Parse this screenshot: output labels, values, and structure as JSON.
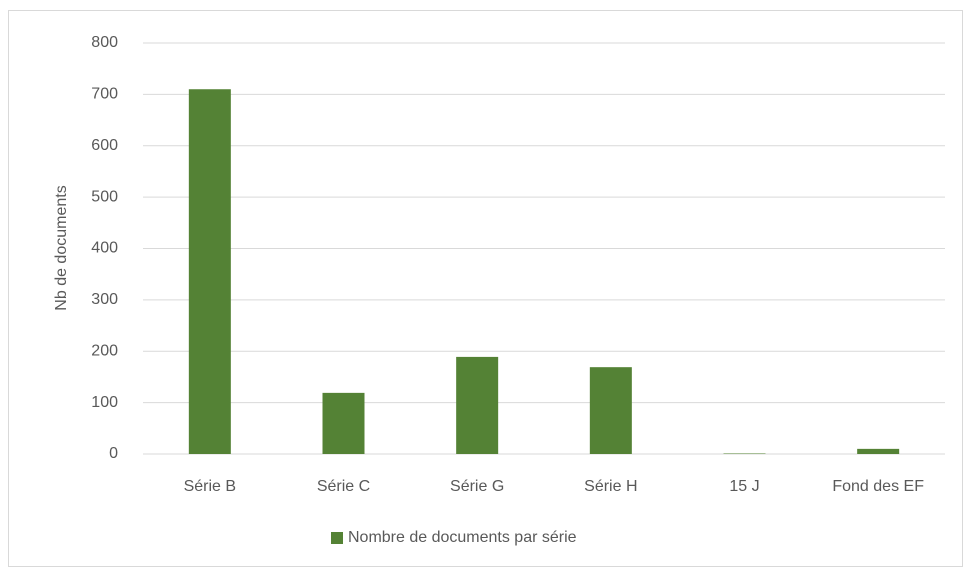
{
  "chart_data": {
    "type": "bar",
    "y_label": "Nb de documents",
    "categories": [
      "Série B",
      "Série C",
      "Série G",
      "Série H",
      "15 J",
      "Fond des EF"
    ],
    "series": [
      {
        "name": "Nombre de documents par série",
        "color": "#548235",
        "values": [
          710,
          119,
          189,
          169,
          1,
          10
        ]
      }
    ],
    "ylim": [
      0,
      800
    ],
    "yticks": [
      0,
      100,
      200,
      300,
      400,
      500,
      600,
      700,
      800
    ],
    "grid": true,
    "legend": "bottom"
  }
}
